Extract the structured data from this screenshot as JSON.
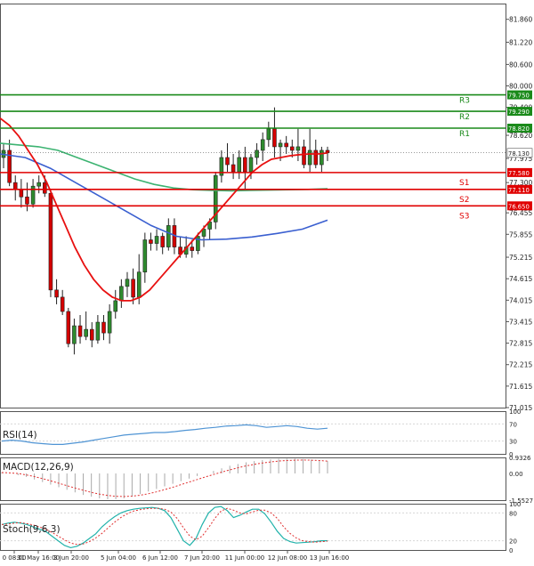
{
  "colors": {
    "bull": "#2e8b2e",
    "bear": "#d40000",
    "wick": "#222222",
    "resistance": "#1a8a1a",
    "support": "#e00000",
    "ma_fast": "#e81010",
    "ma_mid": "#3cb371",
    "ma_slow": "#3a5fd0",
    "rsi": "#4f94d4",
    "macd_hist": "#aaaaaa",
    "macd_signal": "#e03030",
    "stoch_main": "#20b2aa",
    "stoch_signal": "#e03030",
    "grid": "#d8d8d8",
    "axis_text": "#222222",
    "current_price": "#333333"
  },
  "chart_data": [
    {
      "type": "candlestick",
      "panel": "price",
      "ylim": [
        71.015,
        82.3
      ],
      "y_ticks": [
        "81.860",
        "81.220",
        "80.600",
        "80.000",
        "79.400",
        "78.620",
        "77.975",
        "77.300",
        "76.455",
        "75.855",
        "75.215",
        "74.615",
        "74.015",
        "73.415",
        "72.815",
        "72.215",
        "71.615",
        "71.015"
      ],
      "candles": [
        {
          "o": 78.0,
          "h": 78.4,
          "l": 77.7,
          "c": 78.2
        },
        {
          "o": 78.2,
          "h": 78.5,
          "l": 77.2,
          "c": 77.3
        },
        {
          "o": 77.3,
          "h": 77.5,
          "l": 76.8,
          "c": 77.1
        },
        {
          "o": 77.1,
          "h": 77.4,
          "l": 76.6,
          "c": 76.9
        },
        {
          "o": 76.9,
          "h": 77.3,
          "l": 76.5,
          "c": 76.7
        },
        {
          "o": 76.7,
          "h": 77.4,
          "l": 76.6,
          "c": 77.2
        },
        {
          "o": 77.2,
          "h": 77.5,
          "l": 77.0,
          "c": 77.3
        },
        {
          "o": 77.3,
          "h": 77.5,
          "l": 76.9,
          "c": 77.0
        },
        {
          "o": 77.0,
          "h": 77.1,
          "l": 74.1,
          "c": 74.3
        },
        {
          "o": 74.3,
          "h": 74.6,
          "l": 73.9,
          "c": 74.1
        },
        {
          "o": 74.1,
          "h": 74.3,
          "l": 73.6,
          "c": 73.7
        },
        {
          "o": 73.7,
          "h": 73.8,
          "l": 72.7,
          "c": 72.8
        },
        {
          "o": 72.8,
          "h": 73.5,
          "l": 72.5,
          "c": 73.3
        },
        {
          "o": 73.3,
          "h": 73.6,
          "l": 72.8,
          "c": 73.0
        },
        {
          "o": 73.0,
          "h": 73.7,
          "l": 72.9,
          "c": 73.2
        },
        {
          "o": 73.2,
          "h": 73.4,
          "l": 72.7,
          "c": 72.9
        },
        {
          "o": 72.9,
          "h": 73.6,
          "l": 72.8,
          "c": 73.4
        },
        {
          "o": 73.4,
          "h": 73.6,
          "l": 72.9,
          "c": 73.1
        },
        {
          "o": 73.1,
          "h": 73.9,
          "l": 72.8,
          "c": 73.7
        },
        {
          "o": 73.7,
          "h": 74.3,
          "l": 73.5,
          "c": 74.0
        },
        {
          "o": 74.0,
          "h": 74.6,
          "l": 73.8,
          "c": 74.4
        },
        {
          "o": 74.4,
          "h": 74.8,
          "l": 74.1,
          "c": 74.6
        },
        {
          "o": 74.6,
          "h": 74.9,
          "l": 73.9,
          "c": 74.1
        },
        {
          "o": 74.1,
          "h": 75.3,
          "l": 73.9,
          "c": 74.8
        },
        {
          "o": 74.8,
          "h": 75.9,
          "l": 74.5,
          "c": 75.7
        },
        {
          "o": 75.7,
          "h": 75.9,
          "l": 75.4,
          "c": 75.6
        },
        {
          "o": 75.6,
          "h": 76.0,
          "l": 75.4,
          "c": 75.8
        },
        {
          "o": 75.8,
          "h": 75.9,
          "l": 75.3,
          "c": 75.5
        },
        {
          "o": 75.5,
          "h": 76.3,
          "l": 75.4,
          "c": 76.1
        },
        {
          "o": 76.1,
          "h": 76.3,
          "l": 75.3,
          "c": 75.5
        },
        {
          "o": 75.5,
          "h": 75.8,
          "l": 75.2,
          "c": 75.3
        },
        {
          "o": 75.3,
          "h": 75.8,
          "l": 75.2,
          "c": 75.5
        },
        {
          "o": 75.5,
          "h": 75.7,
          "l": 75.2,
          "c": 75.4
        },
        {
          "o": 75.4,
          "h": 75.9,
          "l": 75.3,
          "c": 75.8
        },
        {
          "o": 75.8,
          "h": 76.1,
          "l": 75.5,
          "c": 76.0
        },
        {
          "o": 76.0,
          "h": 76.3,
          "l": 75.7,
          "c": 76.2
        },
        {
          "o": 76.2,
          "h": 77.6,
          "l": 76.0,
          "c": 77.5
        },
        {
          "o": 77.5,
          "h": 78.2,
          "l": 77.3,
          "c": 78.0
        },
        {
          "o": 78.0,
          "h": 78.4,
          "l": 77.6,
          "c": 77.8
        },
        {
          "o": 77.8,
          "h": 78.1,
          "l": 77.4,
          "c": 77.6
        },
        {
          "o": 77.6,
          "h": 78.2,
          "l": 77.4,
          "c": 78.0
        },
        {
          "o": 78.0,
          "h": 78.3,
          "l": 77.1,
          "c": 77.6
        },
        {
          "o": 77.6,
          "h": 78.1,
          "l": 77.4,
          "c": 78.0
        },
        {
          "o": 78.0,
          "h": 78.4,
          "l": 77.8,
          "c": 78.2
        },
        {
          "o": 78.2,
          "h": 78.7,
          "l": 77.9,
          "c": 78.5
        },
        {
          "o": 78.5,
          "h": 79.0,
          "l": 78.3,
          "c": 78.8
        },
        {
          "o": 78.8,
          "h": 79.4,
          "l": 78.0,
          "c": 78.3
        },
        {
          "o": 78.3,
          "h": 78.5,
          "l": 77.9,
          "c": 78.4
        },
        {
          "o": 78.4,
          "h": 78.6,
          "l": 78.1,
          "c": 78.3
        },
        {
          "o": 78.3,
          "h": 78.5,
          "l": 78.0,
          "c": 78.2
        },
        {
          "o": 78.2,
          "h": 78.8,
          "l": 77.9,
          "c": 78.3
        },
        {
          "o": 78.3,
          "h": 78.5,
          "l": 77.7,
          "c": 77.8
        },
        {
          "o": 77.8,
          "h": 78.8,
          "l": 77.6,
          "c": 78.2
        },
        {
          "o": 78.2,
          "h": 78.5,
          "l": 77.7,
          "c": 77.8
        },
        {
          "o": 77.8,
          "h": 78.3,
          "l": 77.6,
          "c": 78.2
        },
        {
          "o": 78.2,
          "h": 78.3,
          "l": 77.9,
          "c": 78.13
        }
      ],
      "overlays": {
        "ma_fast": [
          79.1,
          78.9,
          78.6,
          78.2,
          77.8,
          77.3,
          76.7,
          76.1,
          75.5,
          75.0,
          74.6,
          74.3,
          74.1,
          74.0,
          74.0,
          74.1,
          74.3,
          74.6,
          74.9,
          75.2,
          75.5,
          75.8,
          76.1,
          76.4,
          76.7,
          77.0,
          77.3,
          77.6,
          77.8,
          77.95,
          78.0,
          78.05,
          78.08,
          78.1,
          78.1,
          78.13
        ],
        "ma_mid": [
          78.4,
          78.35,
          78.3,
          78.2,
          78.0,
          77.8,
          77.6,
          77.4,
          77.25,
          77.15,
          77.1,
          77.08,
          77.07,
          77.08,
          77.09,
          77.1,
          77.11,
          77.13
        ],
        "ma_slow": [
          78.1,
          78.0,
          77.7,
          77.3,
          76.9,
          76.5,
          76.1,
          75.8,
          75.7,
          75.72,
          75.78,
          75.88,
          76.0,
          76.25
        ]
      },
      "levels": [
        {
          "label": "R3",
          "value": "79.750",
          "kind": "resistance"
        },
        {
          "label": "R2",
          "value": "79.290",
          "kind": "resistance"
        },
        {
          "label": "R1",
          "value": "78.820",
          "kind": "resistance"
        },
        {
          "label": "S1",
          "value": "77.580",
          "kind": "support"
        },
        {
          "label": "S2",
          "value": "77.110",
          "kind": "support"
        },
        {
          "label": "S3",
          "value": "76.650",
          "kind": "support"
        }
      ],
      "current_price": "78.130"
    },
    {
      "type": "line",
      "panel": "rsi",
      "title": "RSI(14)",
      "ylim": [
        0,
        100
      ],
      "y_ticks": [
        "100",
        "70",
        "30",
        "0"
      ],
      "values": [
        30,
        32,
        30,
        26,
        24,
        22,
        22,
        25,
        28,
        32,
        36,
        40,
        44,
        46,
        48,
        50,
        50,
        52,
        55,
        57,
        60,
        62,
        65,
        66,
        68,
        66,
        62,
        64,
        66,
        64,
        60,
        58,
        60
      ]
    },
    {
      "type": "bar+line",
      "panel": "macd",
      "title": "MACD(12,26,9)",
      "ylim": [
        -1.5527,
        0.9326
      ],
      "y_ticks": [
        "0.9326",
        "0.00",
        "-1.5527"
      ],
      "histogram": [
        0.05,
        0.0,
        -0.1,
        -0.2,
        -0.35,
        -0.5,
        -0.65,
        -0.8,
        -0.95,
        -1.1,
        -1.25,
        -1.35,
        -1.45,
        -1.5,
        -1.5,
        -1.45,
        -1.35,
        -1.2,
        -1.05,
        -0.9,
        -0.75,
        -0.6,
        -0.45,
        -0.3,
        -0.15,
        0.0,
        0.15,
        0.3,
        0.45,
        0.55,
        0.65,
        0.72,
        0.78,
        0.82,
        0.85,
        0.86,
        0.86,
        0.84,
        0.8,
        0.76,
        0.72
      ],
      "signal": [
        0.05,
        0.03,
        0.0,
        -0.08,
        -0.18,
        -0.3,
        -0.43,
        -0.57,
        -0.71,
        -0.85,
        -0.98,
        -1.1,
        -1.2,
        -1.28,
        -1.33,
        -1.34,
        -1.32,
        -1.27,
        -1.18,
        -1.07,
        -0.94,
        -0.8,
        -0.65,
        -0.5,
        -0.35,
        -0.2,
        -0.06,
        0.08,
        0.21,
        0.33,
        0.44,
        0.53,
        0.61,
        0.67,
        0.72,
        0.75,
        0.77,
        0.78,
        0.77,
        0.75,
        0.72
      ]
    },
    {
      "type": "line",
      "panel": "stochastic",
      "title": "Stoch(9,6,3)",
      "ylim": [
        0,
        100
      ],
      "y_ticks": [
        "100",
        "80",
        "20",
        "0"
      ],
      "main": [
        55,
        58,
        60,
        58,
        55,
        50,
        45,
        40,
        30,
        20,
        10,
        5,
        8,
        15,
        25,
        35,
        50,
        62,
        72,
        80,
        85,
        88,
        90,
        91,
        92,
        90,
        85,
        70,
        45,
        20,
        10,
        25,
        55,
        80,
        92,
        94,
        85,
        70,
        75,
        82,
        88,
        88,
        78,
        60,
        40,
        25,
        18,
        15,
        16,
        17,
        18,
        20,
        20
      ],
      "signal": [
        55,
        56,
        58,
        59,
        57,
        54,
        50,
        45,
        38,
        30,
        22,
        15,
        12,
        13,
        18,
        26,
        36,
        48,
        60,
        70,
        78,
        84,
        87,
        89,
        90,
        90,
        88,
        82,
        68,
        48,
        30,
        22,
        30,
        48,
        68,
        84,
        90,
        86,
        80,
        78,
        82,
        86,
        86,
        80,
        68,
        50,
        36,
        26,
        20,
        18,
        17,
        18,
        19
      ]
    }
  ],
  "x_axis_labels": [
    "0 08:00",
    "31 May 16:00",
    "3 Jun 20:00",
    "5 Jun 04:00",
    "6 Jun 12:00",
    "7 Jun 20:00",
    "11 Jun 00:00",
    "12 Jun 08:00",
    "13 Jun 16:00"
  ]
}
